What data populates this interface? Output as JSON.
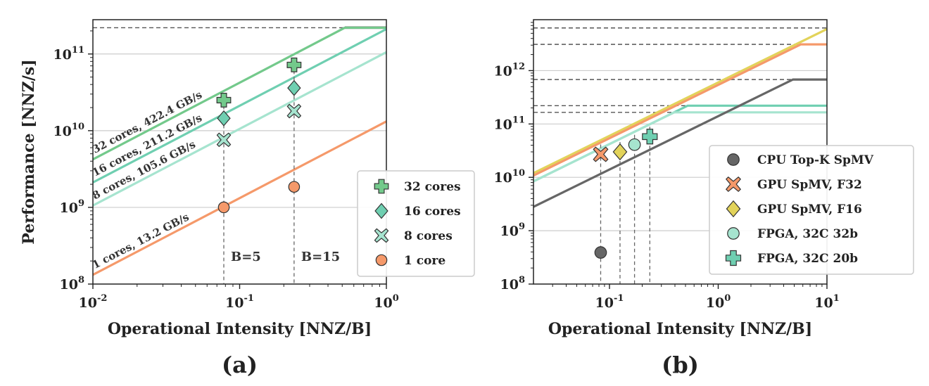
{
  "chart_data": [
    {
      "panel": "(a)",
      "type": "scatter",
      "xscale": "log",
      "yscale": "log",
      "xlim": [
        0.01,
        1.0
      ],
      "ylim": [
        100000000.0,
        280000000000.0
      ],
      "xlabel": "Operational Intensity [NNZ/B]",
      "ylabel": "Performance [NNZ/s]",
      "x_ticks": [
        {
          "v": 0.01,
          "b": "10",
          "e": "-2"
        },
        {
          "v": 0.1,
          "b": "10",
          "e": "-1"
        },
        {
          "v": 1,
          "b": "10",
          "e": "0"
        }
      ],
      "y_ticks": [
        {
          "v": 100000000.0,
          "b": "10",
          "e": "8"
        },
        {
          "v": 1000000000.0,
          "b": "10",
          "e": "9"
        },
        {
          "v": 10000000000.0,
          "b": "10",
          "e": "10"
        },
        {
          "v": 100000000000.0,
          "b": "10",
          "e": "11"
        }
      ],
      "grid": "horizontal",
      "legend_position": "lower-right",
      "roofs": [
        {
          "label": "32 cores, 422.4 GB/s",
          "bandwidth": 422400000000.0,
          "ceiling": 220000000000.0,
          "color": "#73c98b"
        },
        {
          "label": "16 cores, 211.2 GB/s",
          "bandwidth": 211200000000.0,
          "ceiling": 220000000000.0,
          "color": "#6fcfb1"
        },
        {
          "label": "8 cores, 105.6 GB/s",
          "bandwidth": 105600000000.0,
          "ceiling": 220000000000.0,
          "color": "#a6e4cf"
        },
        {
          "label": "1 cores, 13.2 GB/s",
          "bandwidth": 13200000000.0,
          "ceiling": 220000000000.0,
          "color": "#f5996a"
        }
      ],
      "peak": 220000000000.0,
      "peak_color": "#333333",
      "series": [
        {
          "name": "32 cores",
          "marker": "plus",
          "color": "#73c98b",
          "points": [
            [
              0.078,
              25000000000.0
            ],
            [
              0.235,
              72000000000.0
            ]
          ]
        },
        {
          "name": "16 cores",
          "marker": "diamond",
          "color": "#6fcfb1",
          "points": [
            [
              0.078,
              14500000000.0
            ],
            [
              0.235,
              36000000000.0
            ]
          ]
        },
        {
          "name": "8 cores",
          "marker": "x",
          "color": "#a6e4cf",
          "points": [
            [
              0.078,
              7600000000.0
            ],
            [
              0.235,
              18000000000.0
            ]
          ]
        },
        {
          "name": "1 core",
          "marker": "circle",
          "color": "#f5996a",
          "points": [
            [
              0.078,
              1000000000.0
            ],
            [
              0.235,
              1850000000.0
            ]
          ]
        }
      ],
      "annotations": [
        {
          "text": "B=5",
          "x": 0.078
        },
        {
          "text": "B=15",
          "x": 0.235
        }
      ]
    },
    {
      "panel": "(b)",
      "type": "scatter",
      "xscale": "log",
      "yscale": "log",
      "xlim": [
        0.02,
        10
      ],
      "ylim": [
        100000000.0,
        9000000000000.0
      ],
      "xlabel": "Operational Intensity [NNZ/B]",
      "ylabel": "",
      "x_ticks": [
        {
          "v": 0.1,
          "b": "10",
          "e": "-1"
        },
        {
          "v": 1,
          "b": "10",
          "e": "0"
        },
        {
          "v": 10,
          "b": "10",
          "e": "1"
        }
      ],
      "y_ticks": [
        {
          "v": 100000000.0,
          "b": "10",
          "e": "8"
        },
        {
          "v": 1000000000.0,
          "b": "10",
          "e": "9"
        },
        {
          "v": 10000000000.0,
          "b": "10",
          "e": "10"
        },
        {
          "v": 100000000000.0,
          "b": "10",
          "e": "11"
        },
        {
          "v": 1000000000000.0,
          "b": "10",
          "e": "12"
        }
      ],
      "grid": "horizontal",
      "legend_position": "lower-right",
      "roofs": [
        {
          "bandwidth": 600000000000.0,
          "ceiling": 6300000000000.0,
          "color": "#e2d35a"
        },
        {
          "bandwidth": 540000000000.0,
          "ceiling": 3100000000000.0,
          "color": "#f5996a"
        },
        {
          "bandwidth": 420000000000.0,
          "ceiling": 220000000000.0,
          "color": "#6fcfb1"
        },
        {
          "bandwidth": 420000000000.0,
          "ceiling": 165000000000.0,
          "color": "#a6e4cf"
        },
        {
          "bandwidth": 140000000000.0,
          "ceiling": 680000000000.0,
          "color": "#666666"
        }
      ],
      "peaks": [
        6300000000000.0,
        3100000000000.0,
        680000000000.0,
        220000000000.0,
        165000000000.0
      ],
      "series": [
        {
          "name": "CPU Top-K SpMV",
          "marker": "circle",
          "color": "#666666",
          "points": [
            [
              0.083,
              390000000.0
            ]
          ]
        },
        {
          "name": "GPU SpMV, F32",
          "marker": "x",
          "color": "#f5996a",
          "points": [
            [
              0.083,
              27000000000.0
            ]
          ]
        },
        {
          "name": "GPU SpMV, F16",
          "marker": "diamond",
          "color": "#e2d35a",
          "points": [
            [
              0.125,
              30000000000.0
            ]
          ]
        },
        {
          "name": "FPGA, 32C 32b",
          "marker": "circle",
          "color": "#a6e4cf",
          "points": [
            [
              0.17,
              41000000000.0
            ]
          ]
        },
        {
          "name": "FPGA, 32C 20b",
          "marker": "plus",
          "color": "#6fcfb1",
          "points": [
            [
              0.235,
              58000000000.0
            ]
          ]
        }
      ]
    }
  ]
}
